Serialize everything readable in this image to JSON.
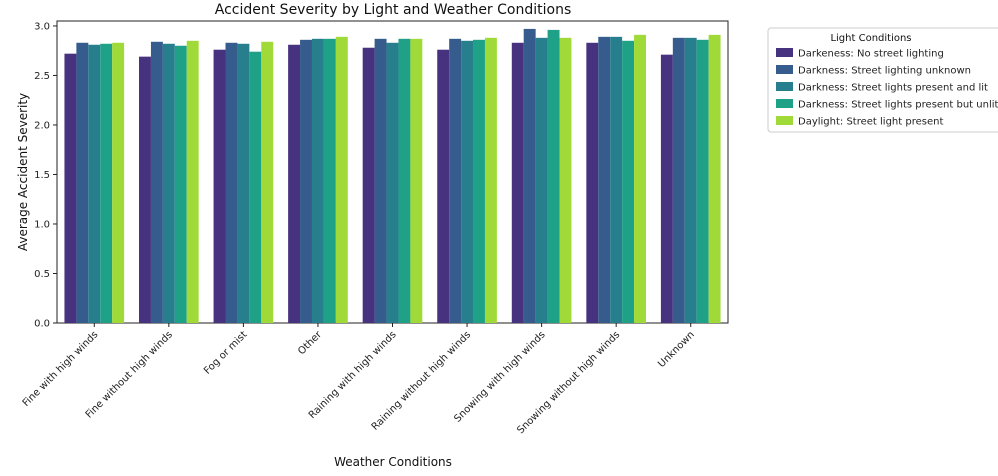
{
  "chart_data": {
    "type": "bar",
    "title": "Accident Severity by Light and Weather Conditions",
    "xlabel": "Weather Conditions",
    "ylabel": "Average Accident Severity",
    "ylim": [
      0,
      3.05
    ],
    "yticks": [
      "0.0",
      "0.5",
      "1.0",
      "1.5",
      "2.0",
      "2.5",
      "3.0"
    ],
    "categories": [
      "Fine with high winds",
      "Fine without high winds",
      "Fog or mist",
      "Other",
      "Raining with high winds",
      "Raining without high winds",
      "Snowing with high winds",
      "Snowing without high winds",
      "Unknown"
    ],
    "legend": {
      "title": "Light Conditions",
      "placement": "outside-right"
    },
    "series": [
      {
        "name": "Darkeness: No street lighting",
        "color": "#46327e",
        "values": [
          2.72,
          2.69,
          2.76,
          2.81,
          2.78,
          2.76,
          2.83,
          2.83,
          2.71
        ]
      },
      {
        "name": "Darkness: Street lighting unknown",
        "color": "#365c8d",
        "values": [
          2.83,
          2.84,
          2.83,
          2.86,
          2.87,
          2.87,
          2.97,
          2.89,
          2.88
        ]
      },
      {
        "name": "Darkness: Street lights present and lit",
        "color": "#277f8e",
        "values": [
          2.81,
          2.82,
          2.82,
          2.87,
          2.83,
          2.85,
          2.88,
          2.89,
          2.88
        ]
      },
      {
        "name": "Darkness: Street lights present but unlit",
        "color": "#1fa187",
        "values": [
          2.82,
          2.8,
          2.74,
          2.87,
          2.87,
          2.86,
          2.96,
          2.85,
          2.86
        ]
      },
      {
        "name": "Daylight: Street light present",
        "color": "#a0da39",
        "values": [
          2.83,
          2.85,
          2.84,
          2.89,
          2.87,
          2.88,
          2.88,
          2.91,
          2.91
        ]
      }
    ]
  }
}
